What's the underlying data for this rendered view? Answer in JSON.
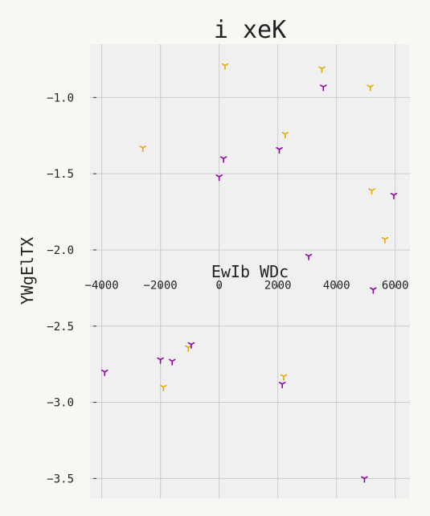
{
  "chart_data": {
    "type": "scatter",
    "title": "i xeK",
    "xlabel": "EwIb WDc",
    "ylabel": "YWgElTX",
    "xlim": [
      -4400,
      6500
    ],
    "ylim": [
      -3.63,
      -0.65
    ],
    "x_ticks": [
      -4000,
      -2000,
      0,
      2000,
      4000,
      6000
    ],
    "x_tick_labels": [
      "−4000",
      "−2000",
      "0",
      "2000",
      "4000",
      "6000"
    ],
    "y_ticks": [
      -1.0,
      -1.5,
      -2.0,
      -2.5,
      -3.0,
      -3.5
    ],
    "y_tick_labels": [
      "−1.0",
      "−1.5",
      "−2.0",
      "−2.5",
      "−3.0",
      "−3.5"
    ],
    "x_axis_position_y": -2.26,
    "grid": true,
    "background": "#f0f0f0",
    "gridline_color": "#cbcbcb",
    "marker": "tri_down",
    "series": [
      {
        "color": "#e8a800",
        "points": [
          {
            "x": 200,
            "y": -0.79
          },
          {
            "x": 3500,
            "y": -0.81
          },
          {
            "x": 5150,
            "y": -0.93
          },
          {
            "x": -2600,
            "y": -1.33
          },
          {
            "x": 2250,
            "y": -1.24
          },
          {
            "x": 5200,
            "y": -1.61
          },
          {
            "x": 5650,
            "y": -1.93
          },
          {
            "x": -1050,
            "y": -2.64
          },
          {
            "x": -1900,
            "y": -2.9
          },
          {
            "x": 2200,
            "y": -2.83
          }
        ]
      },
      {
        "color": "#9400a8",
        "points": [
          {
            "x": 3550,
            "y": -0.93
          },
          {
            "x": 2050,
            "y": -1.34
          },
          {
            "x": 150,
            "y": -1.4
          },
          {
            "x": 0,
            "y": -1.52
          },
          {
            "x": 5950,
            "y": -1.64
          },
          {
            "x": 3050,
            "y": -2.04
          },
          {
            "x": 5250,
            "y": -2.26
          },
          {
            "x": -950,
            "y": -2.62
          },
          {
            "x": -2000,
            "y": -2.72
          },
          {
            "x": -1600,
            "y": -2.73
          },
          {
            "x": -3900,
            "y": -2.8
          },
          {
            "x": 2150,
            "y": -2.88
          },
          {
            "x": 4950,
            "y": -3.5
          }
        ]
      }
    ]
  }
}
